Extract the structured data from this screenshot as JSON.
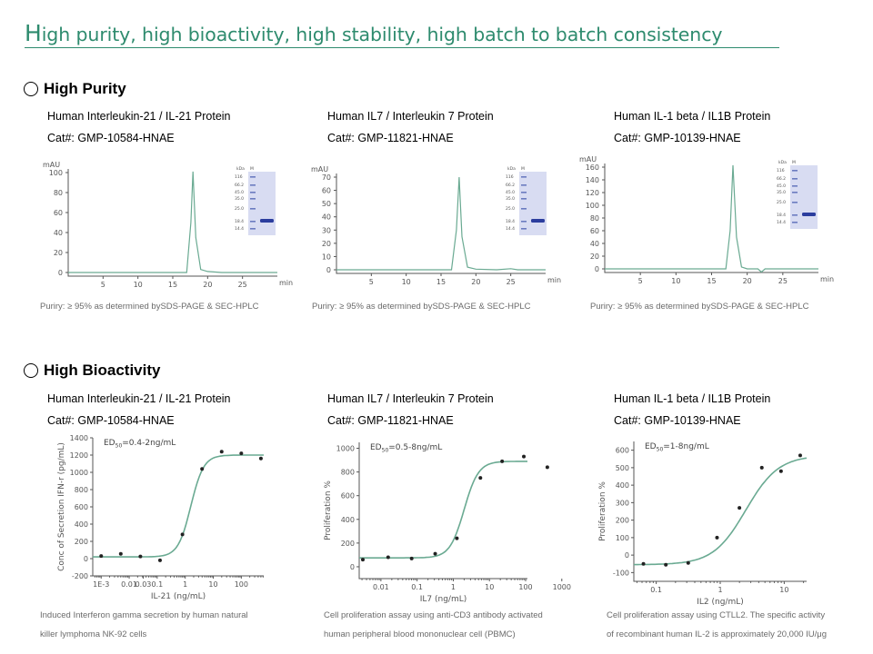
{
  "headline": {
    "first_letter": "H",
    "rest": "igh purity, high bioactivity, high stability, high batch to batch consistency"
  },
  "sections": {
    "purity_title": "High Purity",
    "bioactivity_title": "High Bioactivity"
  },
  "proteins": [
    {
      "name": "Human Interleukin-21  / IL-21 Protein",
      "cat": "Cat#: GMP-10584-HNAE"
    },
    {
      "name": "Human IL7 / Interleukin 7 Protein",
      "cat": "Cat#: GMP-11821-HNAE"
    },
    {
      "name": "Human IL-1 beta / IL1B Protein",
      "cat": "Cat#: GMP-10139-HNAE"
    }
  ],
  "purity_caption": "Puriry: ≥ 95% as determined bySDS-PAGE  & SEC-HPLC",
  "bio_captions": [
    {
      "line1": "Induced Interferon gamma  secretion by human natural",
      "line2": "killer lymphoma NK-92 cells"
    },
    {
      "line1": "Cell proliferation assay using anti-CD3 antibody activated",
      "line2": "human peripheral blood mononuclear cell (PBMC)"
    },
    {
      "line1": "Cell proliferation assay using CTLL2.  The specific activity",
      "line2": "of recombinant human IL-2 is approximately 20,000 IU/μg"
    }
  ],
  "gel": {
    "header_kda": "kDa",
    "header_m": "M",
    "markers": [
      "116",
      "66.2",
      "45.0",
      "35.0",
      "25.0",
      "18.4",
      "14.4"
    ]
  },
  "chart_data": [
    {
      "type": "line",
      "panel": "hplc-1",
      "ylabel": "mAU",
      "xlabel": "min",
      "ylim": [
        0,
        100
      ],
      "yticks": [
        0,
        20,
        40,
        60,
        80,
        100
      ],
      "xlim": [
        0,
        30
      ],
      "xticks": [
        5,
        10,
        15,
        20,
        25
      ],
      "series": [
        {
          "x": [
            0,
            17,
            17.6,
            17.9,
            18.3,
            19,
            20,
            22,
            25,
            30
          ],
          "y": [
            0,
            0,
            50,
            101,
            35,
            3,
            1,
            0,
            0,
            0
          ]
        }
      ]
    },
    {
      "type": "line",
      "panel": "hplc-2",
      "ylabel": "mAU",
      "xlabel": "min",
      "ylim": [
        0,
        70
      ],
      "yticks": [
        0,
        10,
        20,
        30,
        40,
        50,
        60,
        70
      ],
      "xlim": [
        0,
        30
      ],
      "xticks": [
        5,
        10,
        15,
        20,
        25
      ],
      "series": [
        {
          "x": [
            0,
            16.5,
            17.2,
            17.6,
            18,
            18.8,
            20,
            23,
            25,
            26,
            30
          ],
          "y": [
            0,
            0,
            30,
            70,
            25,
            2,
            0.5,
            0,
            0.8,
            0,
            0
          ]
        }
      ]
    },
    {
      "type": "line",
      "panel": "hplc-3",
      "ylabel": "mAU",
      "xlabel": "min",
      "ylim": [
        0,
        160
      ],
      "yticks": [
        0,
        20,
        40,
        60,
        80,
        100,
        120,
        140,
        160
      ],
      "xlim": [
        0,
        30
      ],
      "xticks": [
        5,
        10,
        15,
        20,
        25
      ],
      "series": [
        {
          "x": [
            0,
            17,
            17.6,
            18,
            18.5,
            19.2,
            20,
            21.5,
            22,
            22.5,
            24,
            30
          ],
          "y": [
            0,
            0,
            60,
            163,
            50,
            3,
            0,
            0,
            -5,
            0,
            0,
            0
          ]
        }
      ]
    },
    {
      "type": "scatter",
      "panel": "bio-1",
      "ylabel": "Conc of Secretion IFN-r (pg/mL)",
      "xlabel": "IL-21 (ng/mL)",
      "annotation": "=0.4-2ng/mL",
      "xscale": "log",
      "xlim_log": [
        -3.3,
        2.8
      ],
      "xticks": [
        {
          "v": -3,
          "l": "1E-3"
        },
        {
          "v": -2,
          "l": "0.01"
        },
        {
          "v": -1.5,
          "l": "0.03"
        },
        {
          "v": -1,
          "l": "0.1"
        },
        {
          "v": 0,
          "l": "1"
        },
        {
          "v": 1,
          "l": "10"
        },
        {
          "v": 2,
          "l": "100"
        }
      ],
      "ylim": [
        -200,
        1400
      ],
      "yticks": [
        -200,
        0,
        200,
        400,
        600,
        800,
        1000,
        1200,
        1400
      ],
      "points": [
        [
          -3,
          30
        ],
        [
          -2.3,
          55
        ],
        [
          -1.6,
          25
        ],
        [
          -0.9,
          -20
        ],
        [
          -0.1,
          280
        ],
        [
          0.6,
          1040
        ],
        [
          1.3,
          1240
        ],
        [
          2,
          1220
        ],
        [
          2.7,
          1160
        ]
      ],
      "fit": {
        "bottom": 20,
        "top": 1200,
        "ec50_log": 0.2,
        "hill": 1.9
      }
    },
    {
      "type": "scatter",
      "panel": "bio-2",
      "ylabel": "Proliferation %",
      "xlabel": "IL7 (ng/mL)",
      "annotation": "=0.5-8ng/mL",
      "xscale": "log",
      "xlim_log": [
        -1.6,
        3.05
      ],
      "xticks": [
        {
          "v": -1,
          "l": "0.01"
        },
        {
          "v": 0,
          "l": "0.1"
        },
        {
          "v": 1,
          "l": "1"
        },
        {
          "v": 2,
          "l": "10"
        },
        {
          "v": 3,
          "l": "100"
        },
        {
          "v": 4,
          "l": "1000"
        }
      ],
      "ylim": [
        -100,
        1050
      ],
      "yticks": [
        0,
        200,
        400,
        600,
        800,
        1000
      ],
      "points": [
        [
          -1.5,
          60
        ],
        [
          -0.8,
          80
        ],
        [
          -0.15,
          70
        ],
        [
          0.5,
          110
        ],
        [
          1.1,
          240
        ],
        [
          1.75,
          750
        ],
        [
          2.35,
          890
        ],
        [
          2.95,
          930
        ],
        [
          3.6,
          840
        ]
      ],
      "fit": {
        "bottom": 75,
        "top": 890,
        "ec50_log": 1.3,
        "hill": 2.2
      }
    },
    {
      "type": "scatter",
      "panel": "bio-3",
      "ylabel": "Proliferation %",
      "xlabel": "IL2 (ng/mL)",
      "annotation": "=1-8ng/mL",
      "xscale": "log",
      "xlim_log": [
        -1.35,
        1.35
      ],
      "xticks": [
        {
          "v": -1,
          "l": "0.1"
        },
        {
          "v": 0,
          "l": "1"
        },
        {
          "v": 1,
          "l": "10"
        }
      ],
      "ylim": [
        -150,
        650
      ],
      "yticks": [
        -100,
        0,
        100,
        200,
        300,
        400,
        500,
        600
      ],
      "points": [
        [
          -1.2,
          -50
        ],
        [
          -0.85,
          -55
        ],
        [
          -0.5,
          -45
        ],
        [
          -0.05,
          100
        ],
        [
          0.3,
          270
        ],
        [
          0.65,
          500
        ],
        [
          0.95,
          480
        ],
        [
          1.25,
          570
        ]
      ],
      "fit": {
        "bottom": -55,
        "top": 570,
        "ec50_log": 0.4,
        "hill": 1.7
      }
    }
  ]
}
